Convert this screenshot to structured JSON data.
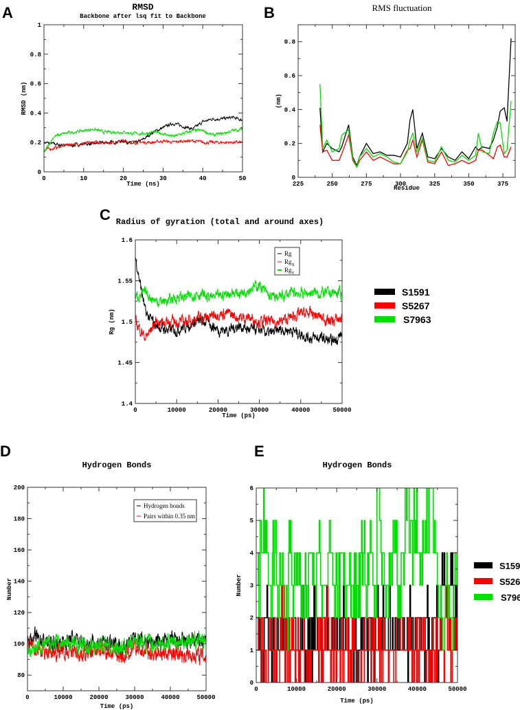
{
  "colors": {
    "S1591": "#000000",
    "S5267": "#ff0000",
    "S7963": "#00e000"
  },
  "chart_data": [
    {
      "panel": "A",
      "type": "line",
      "title": "RMSD",
      "subtitle": "Backbone after lsq fit to Backbone",
      "xlabel": "Time (ns)",
      "ylabel": "RMSD (nm)",
      "xlim": [
        0,
        50
      ],
      "ylim": [
        0,
        1
      ],
      "xticks": [
        0,
        10,
        20,
        30,
        40,
        50
      ],
      "yticks": [
        0,
        0.2,
        0.4,
        0.6,
        0.8,
        1
      ],
      "x": [
        0,
        2.5,
        5,
        7.5,
        10,
        12.5,
        15,
        17.5,
        20,
        22.5,
        25,
        27.5,
        30,
        32.5,
        35,
        37.5,
        40,
        42.5,
        45,
        47.5,
        50
      ],
      "series": [
        {
          "values": [
            0.2,
            0.19,
            0.18,
            0.18,
            0.19,
            0.19,
            0.2,
            0.2,
            0.21,
            0.19,
            0.22,
            0.27,
            0.3,
            0.33,
            0.31,
            0.29,
            0.34,
            0.36,
            0.36,
            0.37,
            0.35
          ]
        },
        {
          "values": [
            0.15,
            0.16,
            0.18,
            0.19,
            0.19,
            0.2,
            0.2,
            0.2,
            0.21,
            0.2,
            0.2,
            0.2,
            0.21,
            0.2,
            0.21,
            0.21,
            0.2,
            0.2,
            0.2,
            0.2,
            0.2
          ]
        },
        {
          "values": [
            0.13,
            0.24,
            0.26,
            0.27,
            0.28,
            0.29,
            0.27,
            0.27,
            0.27,
            0.26,
            0.26,
            0.27,
            0.26,
            0.24,
            0.26,
            0.28,
            0.28,
            0.25,
            0.26,
            0.28,
            0.29
          ]
        }
      ]
    },
    {
      "panel": "B",
      "type": "line",
      "title": "RMS fluctuation",
      "xlabel": "Residue",
      "ylabel": "(nm)",
      "xlim": [
        225,
        384
      ],
      "ylim": [
        0,
        0.9
      ],
      "xticks": [
        225,
        250,
        275,
        300,
        325,
        350,
        375
      ],
      "yticks": [
        0,
        0.2,
        0.4,
        0.6,
        0.8
      ],
      "x": [
        241,
        243,
        246,
        250,
        255,
        257,
        262,
        265,
        268,
        270,
        275,
        280,
        285,
        290,
        295,
        300,
        305,
        307,
        309,
        312,
        316,
        320,
        325,
        330,
        335,
        340,
        345,
        350,
        355,
        357,
        360,
        365,
        368,
        371,
        373,
        376,
        378,
        381
      ],
      "series": [
        {
          "values": [
            0.41,
            0.15,
            0.2,
            0.17,
            0.15,
            0.18,
            0.31,
            0.12,
            0.07,
            0.12,
            0.2,
            0.14,
            0.15,
            0.13,
            0.13,
            0.12,
            0.2,
            0.34,
            0.4,
            0.17,
            0.26,
            0.12,
            0.11,
            0.17,
            0.12,
            0.1,
            0.15,
            0.11,
            0.18,
            0.16,
            0.18,
            0.17,
            0.22,
            0.3,
            0.39,
            0.41,
            0.33,
            0.82
          ]
        },
        {
          "values": [
            0.31,
            0.15,
            0.16,
            0.1,
            0.1,
            0.14,
            0.25,
            0.1,
            0.06,
            0.1,
            0.15,
            0.1,
            0.12,
            0.1,
            0.08,
            0.08,
            0.16,
            0.17,
            0.22,
            0.12,
            0.22,
            0.09,
            0.08,
            0.15,
            0.07,
            0.08,
            0.1,
            0.08,
            0.1,
            0.16,
            0.16,
            0.13,
            0.11,
            0.18,
            0.19,
            0.12,
            0.12,
            0.18
          ]
        },
        {
          "values": [
            0.55,
            0.17,
            0.22,
            0.15,
            0.17,
            0.25,
            0.28,
            0.11,
            0.06,
            0.12,
            0.17,
            0.12,
            0.14,
            0.12,
            0.09,
            0.08,
            0.15,
            0.22,
            0.26,
            0.15,
            0.23,
            0.1,
            0.09,
            0.18,
            0.1,
            0.09,
            0.13,
            0.1,
            0.13,
            0.26,
            0.15,
            0.14,
            0.26,
            0.33,
            0.32,
            0.14,
            0.16,
            0.45
          ]
        }
      ]
    },
    {
      "panel": "C",
      "type": "line",
      "title": "Radius of gyration (total and around axes)",
      "xlabel": "Time (ps)",
      "ylabel": "Rg (nm)",
      "xlim": [
        0,
        50000
      ],
      "ylim": [
        1.4,
        1.6
      ],
      "xticks": [
        0,
        10000,
        20000,
        30000,
        40000,
        50000
      ],
      "yticks": [
        1.4,
        1.45,
        1.5,
        1.55,
        1.6
      ],
      "inner_legend": [
        {
          "base": "Rg",
          "sub": ""
        },
        {
          "base": "Rg",
          "sub": "X"
        },
        {
          "base": "Rg",
          "sub": "Y"
        }
      ],
      "x": [
        0,
        2500,
        5000,
        7500,
        10000,
        12500,
        15000,
        17500,
        20000,
        22500,
        25000,
        27500,
        30000,
        32500,
        35000,
        37500,
        40000,
        42500,
        45000,
        47500,
        50000
      ],
      "series": [
        {
          "values": [
            1.58,
            1.51,
            1.495,
            1.49,
            1.49,
            1.495,
            1.5,
            1.5,
            1.49,
            1.49,
            1.495,
            1.49,
            1.49,
            1.485,
            1.49,
            1.49,
            1.485,
            1.48,
            1.48,
            1.475,
            1.485
          ]
        },
        {
          "values": [
            1.5,
            1.48,
            1.5,
            1.5,
            1.5,
            1.5,
            1.505,
            1.505,
            1.51,
            1.51,
            1.505,
            1.505,
            1.5,
            1.5,
            1.5,
            1.505,
            1.51,
            1.51,
            1.505,
            1.5,
            1.505
          ]
        },
        {
          "values": [
            1.53,
            1.535,
            1.525,
            1.525,
            1.53,
            1.53,
            1.535,
            1.53,
            1.53,
            1.535,
            1.535,
            1.54,
            1.545,
            1.53,
            1.53,
            1.535,
            1.535,
            1.535,
            1.535,
            1.535,
            1.535
          ]
        }
      ]
    },
    {
      "panel": "D",
      "type": "line",
      "title": "Hydrogen Bonds",
      "xlabel": "Time (ps)",
      "ylabel": "Number",
      "xlim": [
        0,
        50000
      ],
      "ylim": [
        70,
        200
      ],
      "xticks": [
        0,
        10000,
        20000,
        30000,
        40000,
        50000
      ],
      "yticks": [
        80,
        100,
        120,
        140,
        160,
        180,
        200
      ],
      "inner_legend": [
        {
          "base": "Hydrogen bonds",
          "sub": ""
        },
        {
          "base": "Pairs within 0.35 nm",
          "sub": ""
        }
      ],
      "x": [
        0,
        2500,
        5000,
        7500,
        10000,
        12500,
        15000,
        17500,
        20000,
        22500,
        25000,
        27500,
        30000,
        32500,
        35000,
        37500,
        40000,
        42500,
        45000,
        47500,
        50000
      ],
      "series": [
        {
          "values": [
            102,
            104,
            101,
            100,
            101,
            103,
            101,
            100,
            101,
            100,
            99,
            98,
            104,
            102,
            101,
            101,
            102,
            101,
            101,
            102,
            102
          ]
        },
        {
          "values": [
            100,
            97,
            95,
            95,
            96,
            95,
            94,
            94,
            96,
            95,
            93,
            92,
            97,
            95,
            94,
            94,
            94,
            93,
            93,
            93,
            92
          ]
        },
        {
          "values": [
            96,
            99,
            99,
            101,
            100,
            100,
            99,
            98,
            100,
            99,
            98,
            97,
            103,
            101,
            100,
            100,
            101,
            101,
            102,
            102,
            103
          ]
        }
      ]
    },
    {
      "panel": "E",
      "type": "line",
      "title": "Hydrogen Bonds",
      "xlabel": "Time (ps)",
      "ylabel": "Number",
      "xlim": [
        0,
        50000
      ],
      "ylim": [
        0,
        6
      ],
      "xticks": [
        0,
        10000,
        20000,
        30000,
        40000,
        50000
      ],
      "yticks": [
        0,
        1,
        2,
        3,
        4,
        5,
        6
      ],
      "x_step": 1000,
      "series": [
        {
          "values": [
            2,
            1,
            2,
            1,
            1,
            1,
            2,
            1,
            1,
            2,
            1,
            2,
            1,
            1,
            2,
            2,
            2,
            2,
            1,
            2,
            1,
            2,
            2,
            1,
            1,
            1,
            2,
            1,
            2,
            1,
            2,
            2,
            1,
            2,
            1,
            2,
            2,
            1,
            2,
            1,
            2,
            1,
            2,
            1,
            2,
            1,
            3,
            2,
            3,
            2,
            2
          ]
        },
        {
          "values": [
            1,
            1,
            0,
            1,
            1,
            1,
            2,
            1,
            1,
            1,
            1,
            1,
            0,
            1,
            1,
            1,
            1,
            2,
            1,
            1,
            1,
            1,
            1,
            1,
            1,
            0,
            1,
            1,
            1,
            1,
            1,
            1,
            1,
            1,
            1,
            2,
            1,
            1,
            1,
            1,
            1,
            1,
            1,
            1,
            1,
            1,
            1,
            2,
            1,
            1,
            1
          ]
        },
        {
          "values": [
            3,
            5,
            4,
            3,
            4,
            3,
            3,
            2,
            4,
            3,
            4,
            3,
            3,
            4,
            3,
            4,
            3,
            3,
            4,
            3,
            3,
            4,
            3,
            3,
            3,
            3,
            4,
            3,
            4,
            3,
            6,
            4,
            3,
            4,
            5,
            3,
            4,
            6,
            4,
            5,
            4,
            4,
            5,
            6,
            4,
            3,
            2,
            3,
            2,
            3,
            3
          ]
        }
      ]
    }
  ],
  "legend": [
    "S1591",
    "S5267",
    "S7963"
  ]
}
